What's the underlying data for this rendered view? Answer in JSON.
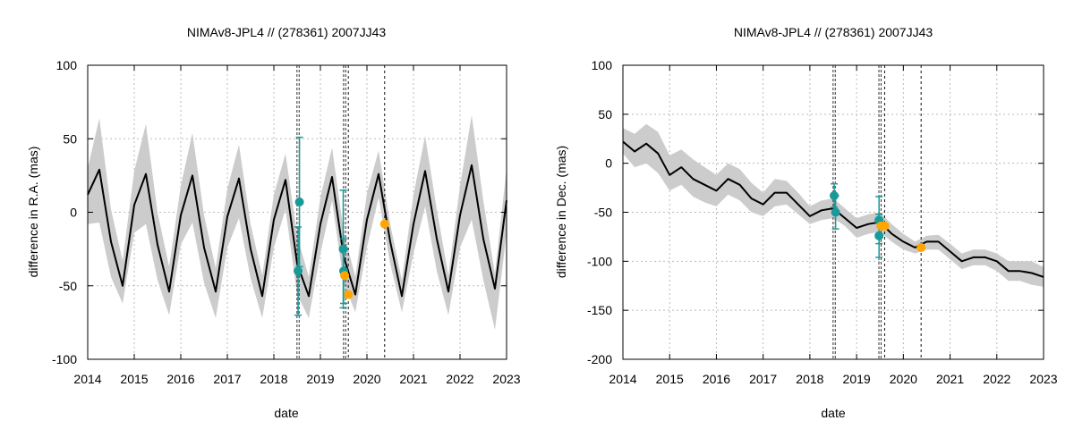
{
  "chart_data": [
    {
      "type": "line",
      "title": "NIMAv8-JPL4 // (278361) 2007JJ43",
      "xlabel": "date",
      "ylabel": "difference in R.A. (mas)",
      "xlim": [
        2014,
        2023
      ],
      "ylim": [
        -100,
        100
      ],
      "xticks": [
        "2014",
        "2015",
        "2016",
        "2017",
        "2018",
        "2019",
        "2020",
        "2021",
        "2022",
        "2023"
      ],
      "yticks": [
        "-100",
        "-50",
        "0",
        "50",
        "100"
      ],
      "grid": true,
      "colors": {
        "line": "#000000",
        "band": "#cccccc",
        "obs_a": "#1a9999",
        "obs_b": "#ffa500",
        "grid": "#bbbbbb"
      },
      "series": [
        {
          "kind": "line",
          "x": [
            2014.0,
            2014.25,
            2014.5,
            2014.75,
            2015.0,
            2015.25,
            2015.5,
            2015.75,
            2016.0,
            2016.25,
            2016.5,
            2016.75,
            2017.0,
            2017.25,
            2017.5,
            2017.75,
            2018.0,
            2018.25,
            2018.5,
            2018.75,
            2019.0,
            2019.25,
            2019.5,
            2019.75,
            2020.0,
            2020.25,
            2020.5,
            2020.75,
            2021.0,
            2021.25,
            2021.5,
            2021.75,
            2022.0,
            2022.25,
            2022.5,
            2022.75,
            2023.0
          ],
          "y": [
            12,
            29,
            -20,
            -50,
            5,
            26,
            -22,
            -54,
            -2,
            25,
            -24,
            -54,
            -3,
            23,
            -25,
            -57,
            -5,
            22,
            -35,
            -57,
            -8,
            24,
            -30,
            -56,
            -5,
            26,
            -20,
            -57,
            -8,
            28,
            -18,
            -54,
            -2,
            32,
            -18,
            -52,
            8
          ]
        },
        {
          "kind": "band",
          "x": [
            2014.0,
            2014.25,
            2014.5,
            2014.75,
            2015.0,
            2015.25,
            2015.5,
            2015.75,
            2016.0,
            2016.25,
            2016.5,
            2016.75,
            2017.0,
            2017.25,
            2017.5,
            2017.75,
            2018.0,
            2018.25,
            2018.5,
            2018.75,
            2019.0,
            2019.25,
            2019.5,
            2019.75,
            2020.0,
            2020.25,
            2020.5,
            2020.75,
            2021.0,
            2021.25,
            2021.5,
            2021.75,
            2022.0,
            2022.25,
            2022.5,
            2022.75,
            2023.0
          ],
          "upper": [
            30,
            64,
            2,
            -33,
            28,
            60,
            0,
            -37,
            18,
            54,
            -2,
            -38,
            16,
            46,
            -8,
            -43,
            12,
            40,
            -16,
            -44,
            10,
            44,
            -13,
            -44,
            13,
            42,
            -8,
            -46,
            12,
            52,
            2,
            -43,
            18,
            66,
            8,
            -42,
            30
          ],
          "lower": [
            -8,
            -7,
            -44,
            -62,
            -14,
            -8,
            -46,
            -70,
            -22,
            -7,
            -48,
            -72,
            -24,
            -4,
            -45,
            -72,
            -24,
            2,
            -56,
            -72,
            -28,
            8,
            -48,
            -68,
            -24,
            10,
            -35,
            -68,
            -28,
            4,
            -40,
            -70,
            -24,
            -5,
            -46,
            -80,
            -14
          ]
        },
        {
          "kind": "points",
          "name": "obs_a",
          "x": [
            2018.55,
            2018.52,
            2019.49,
            2019.5
          ],
          "y": [
            7,
            -40,
            -25,
            -40
          ],
          "err": [
            44,
            30,
            40,
            22
          ]
        },
        {
          "kind": "points",
          "name": "obs_b",
          "x": [
            2019.52,
            2019.6,
            2020.38
          ],
          "y": [
            -43,
            -56,
            -8
          ]
        }
      ],
      "vlines": [
        {
          "x": 2018.52,
          "style": "dense"
        },
        {
          "x": 2019.52,
          "style": "dense"
        },
        {
          "x": 2019.6,
          "style": "dashed"
        },
        {
          "x": 2020.38,
          "style": "dashed"
        }
      ]
    },
    {
      "type": "line",
      "title": "NIMAv8-JPL4 // (278361) 2007JJ43",
      "xlabel": "date",
      "ylabel": "difference in Dec. (mas)",
      "xlim": [
        2014,
        2023
      ],
      "ylim": [
        -200,
        100
      ],
      "xticks": [
        "2014",
        "2015",
        "2016",
        "2017",
        "2018",
        "2019",
        "2020",
        "2021",
        "2022",
        "2023"
      ],
      "yticks": [
        "-200",
        "-150",
        "-100",
        "-50",
        "0",
        "50",
        "100"
      ],
      "grid": true,
      "colors": {
        "line": "#000000",
        "band": "#cccccc",
        "obs_a": "#1a9999",
        "obs_b": "#ffa500",
        "grid": "#bbbbbb"
      },
      "series": [
        {
          "kind": "line",
          "x": [
            2014.0,
            2014.25,
            2014.5,
            2014.75,
            2015.0,
            2015.25,
            2015.5,
            2015.75,
            2016.0,
            2016.25,
            2016.5,
            2016.75,
            2017.0,
            2017.25,
            2017.5,
            2017.75,
            2018.0,
            2018.25,
            2018.5,
            2018.75,
            2019.0,
            2019.25,
            2019.5,
            2019.75,
            2020.0,
            2020.25,
            2020.5,
            2020.75,
            2021.0,
            2021.25,
            2021.5,
            2021.75,
            2022.0,
            2022.25,
            2022.5,
            2022.75,
            2023.0
          ],
          "y": [
            22,
            12,
            20,
            10,
            -12,
            -4,
            -16,
            -22,
            -28,
            -16,
            -22,
            -36,
            -42,
            -30,
            -30,
            -42,
            -54,
            -48,
            -46,
            -56,
            -66,
            -62,
            -60,
            -72,
            -80,
            -86,
            -80,
            -80,
            -90,
            -100,
            -96,
            -96,
            -100,
            -110,
            -110,
            -112,
            -116
          ]
        },
        {
          "kind": "band",
          "x": [
            2014.0,
            2014.25,
            2014.5,
            2014.75,
            2015.0,
            2015.25,
            2015.5,
            2015.75,
            2016.0,
            2016.25,
            2016.5,
            2016.75,
            2017.0,
            2017.25,
            2017.5,
            2017.75,
            2018.0,
            2018.25,
            2018.5,
            2018.75,
            2019.0,
            2019.25,
            2019.5,
            2019.75,
            2020.0,
            2020.25,
            2020.5,
            2020.75,
            2021.0,
            2021.25,
            2021.5,
            2021.75,
            2022.0,
            2022.25,
            2022.5,
            2022.75,
            2023.0
          ],
          "upper": [
            36,
            30,
            40,
            32,
            8,
            14,
            4,
            -4,
            -12,
            0,
            -6,
            -20,
            -30,
            -16,
            -18,
            -30,
            -44,
            -38,
            -36,
            -46,
            -56,
            -52,
            -50,
            -62,
            -72,
            -80,
            -74,
            -73,
            -82,
            -92,
            -88,
            -88,
            -92,
            -100,
            -100,
            -100,
            -106
          ],
          "lower": [
            10,
            -4,
            0,
            -10,
            -28,
            -22,
            -34,
            -40,
            -44,
            -32,
            -38,
            -50,
            -54,
            -44,
            -42,
            -52,
            -62,
            -58,
            -56,
            -64,
            -76,
            -72,
            -70,
            -80,
            -88,
            -92,
            -88,
            -88,
            -98,
            -108,
            -104,
            -104,
            -110,
            -120,
            -120,
            -124,
            -126
          ]
        },
        {
          "kind": "points",
          "name": "obs_a",
          "x": [
            2018.52,
            2018.55,
            2019.48,
            2019.48
          ],
          "y": [
            -33,
            -50,
            -58,
            -74
          ],
          "err": [
            12,
            17,
            24,
            22
          ]
        },
        {
          "kind": "points",
          "name": "obs_b",
          "x": [
            2019.52,
            2019.6,
            2020.38
          ],
          "y": [
            -64,
            -64,
            -86
          ]
        }
      ],
      "vlines": [
        {
          "x": 2018.52,
          "style": "dense"
        },
        {
          "x": 2019.5,
          "style": "dense"
        },
        {
          "x": 2019.6,
          "style": "dashed"
        },
        {
          "x": 2020.38,
          "style": "dashed"
        }
      ]
    }
  ]
}
